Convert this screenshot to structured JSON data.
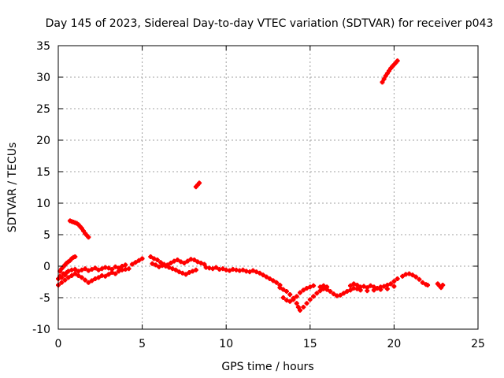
{
  "chart_data": {
    "type": "scatter",
    "title": "Day 145 of 2023, Sidereal Day-to-day VTEC variation (SDTVAR) for receiver p043",
    "xlabel": "GPS time / hours",
    "ylabel": "SDTVAR / TECUs",
    "xlim": [
      0,
      25
    ],
    "ylim": [
      -10,
      35
    ],
    "xticks": [
      0,
      5,
      10,
      15,
      20,
      25
    ],
    "yticks": [
      -10,
      -5,
      0,
      5,
      10,
      15,
      20,
      25,
      30,
      35
    ],
    "grid": true,
    "series_color": "#ff0000",
    "series": [
      {
        "name": "SDTVAR",
        "points": [
          [
            0.0,
            -2.0
          ],
          [
            0.1,
            -1.6
          ],
          [
            0.2,
            -1.8
          ],
          [
            0.3,
            -1.2
          ],
          [
            0.4,
            -1.4
          ],
          [
            0.5,
            -1.0
          ],
          [
            0.6,
            -0.8
          ],
          [
            0.8,
            -0.6
          ],
          [
            1.0,
            -0.5
          ],
          [
            1.2,
            -0.8
          ],
          [
            1.4,
            -0.6
          ],
          [
            1.6,
            -0.4
          ],
          [
            1.8,
            -0.7
          ],
          [
            2.0,
            -0.5
          ],
          [
            2.2,
            -0.3
          ],
          [
            2.4,
            -0.6
          ],
          [
            2.6,
            -0.4
          ],
          [
            2.8,
            -0.2
          ],
          [
            3.0,
            -0.3
          ],
          [
            3.2,
            -0.5
          ],
          [
            3.4,
            -0.1
          ],
          [
            3.6,
            -0.3
          ],
          [
            3.8,
            0.0
          ],
          [
            4.0,
            0.2
          ],
          [
            4.2,
            -0.4
          ],
          [
            4.4,
            0.3
          ],
          [
            4.6,
            0.6
          ],
          [
            4.8,
            0.9
          ],
          [
            5.0,
            1.2
          ],
          [
            0.0,
            -3.0
          ],
          [
            0.2,
            -2.6
          ],
          [
            0.4,
            -2.2
          ],
          [
            0.6,
            -1.8
          ],
          [
            0.8,
            -1.5
          ],
          [
            1.0,
            -1.2
          ],
          [
            1.2,
            -1.5
          ],
          [
            1.4,
            -1.8
          ],
          [
            1.6,
            -2.2
          ],
          [
            1.8,
            -2.6
          ],
          [
            2.0,
            -2.3
          ],
          [
            2.2,
            -2.0
          ],
          [
            2.4,
            -1.8
          ],
          [
            2.6,
            -1.5
          ],
          [
            2.8,
            -1.6
          ],
          [
            3.0,
            -1.3
          ],
          [
            3.2,
            -1.0
          ],
          [
            3.4,
            -1.2
          ],
          [
            3.6,
            -0.8
          ],
          [
            3.8,
            -0.6
          ],
          [
            4.0,
            -0.5
          ],
          [
            0.1,
            -0.8
          ],
          [
            0.2,
            -0.4
          ],
          [
            0.3,
            -0.1
          ],
          [
            0.4,
            0.2
          ],
          [
            0.5,
            0.5
          ],
          [
            0.6,
            0.7
          ],
          [
            0.7,
            0.9
          ],
          [
            0.8,
            1.2
          ],
          [
            0.9,
            1.4
          ],
          [
            1.0,
            1.5
          ],
          [
            0.7,
            7.2
          ],
          [
            0.8,
            7.1
          ],
          [
            0.9,
            7.0
          ],
          [
            1.0,
            6.9
          ],
          [
            1.1,
            6.8
          ],
          [
            1.2,
            6.6
          ],
          [
            1.3,
            6.3
          ],
          [
            1.4,
            6.0
          ],
          [
            1.5,
            5.6
          ],
          [
            1.6,
            5.2
          ],
          [
            1.7,
            4.9
          ],
          [
            1.8,
            4.6
          ],
          [
            5.5,
            1.5
          ],
          [
            5.7,
            1.2
          ],
          [
            5.9,
            1.0
          ],
          [
            6.1,
            0.6
          ],
          [
            6.3,
            0.3
          ],
          [
            6.5,
            0.2
          ],
          [
            6.7,
            0.5
          ],
          [
            6.9,
            0.8
          ],
          [
            7.1,
            1.0
          ],
          [
            7.3,
            0.7
          ],
          [
            7.5,
            0.5
          ],
          [
            7.7,
            0.8
          ],
          [
            7.9,
            1.1
          ],
          [
            8.1,
            1.0
          ],
          [
            8.3,
            0.7
          ],
          [
            8.5,
            0.5
          ],
          [
            8.7,
            0.3
          ],
          [
            5.6,
            0.4
          ],
          [
            5.8,
            0.2
          ],
          [
            6.0,
            -0.1
          ],
          [
            6.2,
            0.1
          ],
          [
            6.4,
            0.0
          ],
          [
            6.6,
            -0.2
          ],
          [
            6.8,
            -0.4
          ],
          [
            7.0,
            -0.6
          ],
          [
            7.2,
            -0.9
          ],
          [
            7.4,
            -1.1
          ],
          [
            7.6,
            -1.3
          ],
          [
            7.8,
            -1.0
          ],
          [
            8.0,
            -0.8
          ],
          [
            8.2,
            -0.6
          ],
          [
            8.8,
            -0.2
          ],
          [
            9.0,
            -0.3
          ],
          [
            9.2,
            -0.4
          ],
          [
            9.4,
            -0.2
          ],
          [
            9.6,
            -0.5
          ],
          [
            9.8,
            -0.4
          ],
          [
            10.0,
            -0.6
          ],
          [
            10.2,
            -0.7
          ],
          [
            10.4,
            -0.5
          ],
          [
            10.6,
            -0.6
          ],
          [
            10.8,
            -0.7
          ],
          [
            11.0,
            -0.6
          ],
          [
            11.2,
            -0.8
          ],
          [
            11.4,
            -0.9
          ],
          [
            11.6,
            -0.7
          ],
          [
            11.8,
            -0.9
          ],
          [
            12.0,
            -1.1
          ],
          [
            12.2,
            -1.4
          ],
          [
            12.4,
            -1.7
          ],
          [
            12.6,
            -2.0
          ],
          [
            12.8,
            -2.3
          ],
          [
            13.0,
            -2.6
          ],
          [
            13.2,
            -3.0
          ],
          [
            8.2,
            12.6
          ],
          [
            8.3,
            12.9
          ],
          [
            8.4,
            13.2
          ],
          [
            13.2,
            -3.4
          ],
          [
            13.4,
            -3.7
          ],
          [
            13.6,
            -4.0
          ],
          [
            13.8,
            -4.5
          ],
          [
            14.0,
            -5.1
          ],
          [
            14.2,
            -5.9
          ],
          [
            14.3,
            -6.5
          ],
          [
            14.4,
            -7.0
          ],
          [
            14.6,
            -6.5
          ],
          [
            14.8,
            -5.9
          ],
          [
            15.0,
            -5.3
          ],
          [
            15.2,
            -4.8
          ],
          [
            15.4,
            -4.3
          ],
          [
            15.6,
            -3.9
          ],
          [
            15.8,
            -3.6
          ],
          [
            16.0,
            -3.7
          ],
          [
            16.2,
            -4.0
          ],
          [
            16.4,
            -4.4
          ],
          [
            16.6,
            -4.7
          ],
          [
            16.8,
            -4.6
          ],
          [
            17.0,
            -4.3
          ],
          [
            17.2,
            -4.0
          ],
          [
            17.4,
            -3.8
          ],
          [
            13.4,
            -5.0
          ],
          [
            13.6,
            -5.4
          ],
          [
            13.8,
            -5.6
          ],
          [
            14.0,
            -5.3
          ],
          [
            14.2,
            -4.8
          ],
          [
            14.4,
            -4.2
          ],
          [
            14.6,
            -3.8
          ],
          [
            14.8,
            -3.5
          ],
          [
            15.0,
            -3.3
          ],
          [
            15.2,
            -3.1
          ],
          [
            15.6,
            -3.3
          ],
          [
            15.8,
            -3.1
          ],
          [
            16.0,
            -3.3
          ],
          [
            17.4,
            -3.1
          ],
          [
            17.6,
            -2.8
          ],
          [
            17.8,
            -3.0
          ],
          [
            18.0,
            -3.3
          ],
          [
            18.2,
            -3.2
          ],
          [
            18.4,
            -3.4
          ],
          [
            18.6,
            -3.1
          ],
          [
            18.8,
            -3.3
          ],
          [
            19.0,
            -3.5
          ],
          [
            19.2,
            -3.3
          ],
          [
            19.4,
            -3.2
          ],
          [
            19.6,
            -3.0
          ],
          [
            19.8,
            -2.8
          ],
          [
            20.0,
            -2.4
          ],
          [
            20.2,
            -2.0
          ],
          [
            17.6,
            -3.5
          ],
          [
            17.8,
            -3.6
          ],
          [
            18.0,
            -3.8
          ],
          [
            18.4,
            -3.9
          ],
          [
            18.8,
            -3.8
          ],
          [
            19.2,
            -3.7
          ],
          [
            19.6,
            -3.6
          ],
          [
            20.0,
            -3.2
          ],
          [
            20.5,
            -1.6
          ],
          [
            20.7,
            -1.3
          ],
          [
            20.9,
            -1.2
          ],
          [
            21.1,
            -1.4
          ],
          [
            21.3,
            -1.7
          ],
          [
            21.5,
            -2.1
          ],
          [
            21.7,
            -2.6
          ],
          [
            21.9,
            -2.9
          ],
          [
            22.0,
            -3.0
          ],
          [
            22.6,
            -2.8
          ],
          [
            22.7,
            -3.1
          ],
          [
            22.8,
            -3.4
          ],
          [
            22.9,
            -3.0
          ],
          [
            19.3,
            29.2
          ],
          [
            19.4,
            29.7
          ],
          [
            19.5,
            30.2
          ],
          [
            19.6,
            30.6
          ],
          [
            19.7,
            31.0
          ],
          [
            19.8,
            31.4
          ],
          [
            19.9,
            31.7
          ],
          [
            20.0,
            32.0
          ],
          [
            20.1,
            32.3
          ],
          [
            20.2,
            32.6
          ]
        ]
      }
    ]
  }
}
